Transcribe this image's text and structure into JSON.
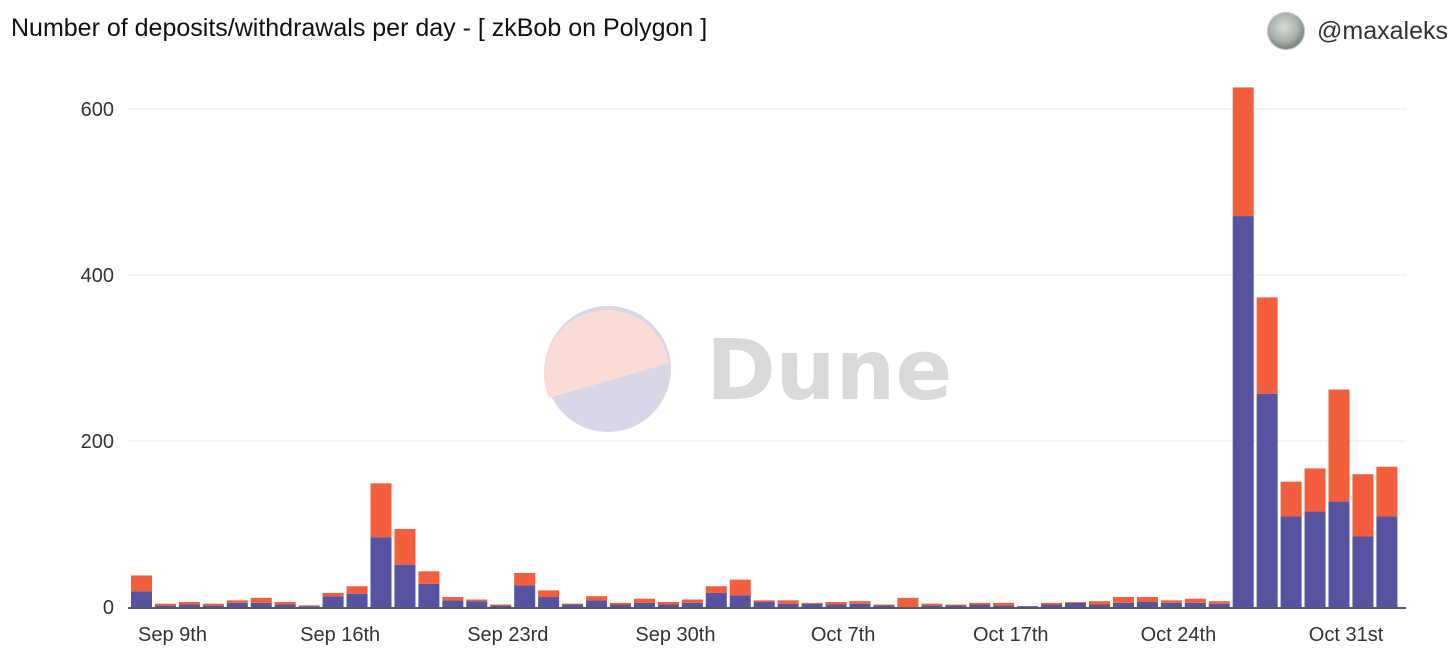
{
  "header": {
    "title": "Number of deposits/withdrawals per day - [ zkBob on Polygon ]",
    "author": "@maxaleks"
  },
  "watermark": {
    "text": "Dune"
  },
  "colors": {
    "deposits": "#5653a0",
    "withdrawals": "#f35e3d",
    "grid": "#e8e8e8",
    "axis": "#222222"
  },
  "chart_data": {
    "type": "bar",
    "stacked": true,
    "grid": true,
    "ylim": [
      0,
      630
    ],
    "yticks": [
      0,
      200,
      400,
      600
    ],
    "xticks": [
      {
        "index": 0,
        "label": "Sep 9th"
      },
      {
        "index": 7,
        "label": "Sep 16th"
      },
      {
        "index": 14,
        "label": "Sep 23rd"
      },
      {
        "index": 21,
        "label": "Sep 30th"
      },
      {
        "index": 28,
        "label": "Oct 7th"
      },
      {
        "index": 35,
        "label": "Oct 17th"
      },
      {
        "index": 42,
        "label": "Oct 24th"
      },
      {
        "index": 49,
        "label": "Oct 31st"
      }
    ],
    "series": [
      {
        "values": [
          19,
          2,
          3,
          2,
          5,
          5,
          3,
          1,
          13,
          16,
          84,
          51,
          28,
          8,
          7,
          2,
          26,
          12,
          3,
          8,
          3,
          5,
          3,
          5,
          17,
          14,
          6,
          4,
          4,
          3,
          4,
          2,
          0,
          2,
          2,
          3,
          2,
          1,
          3,
          5,
          3,
          5,
          6,
          5,
          5,
          4,
          471,
          257,
          109,
          115,
          127,
          85,
          109
        ]
      },
      {
        "values": [
          19,
          2,
          3,
          2,
          3,
          6,
          3,
          1,
          4,
          9,
          65,
          43,
          15,
          4,
          2,
          1,
          15,
          8,
          1,
          5,
          2,
          5,
          3,
          4,
          8,
          19,
          2,
          4,
          1,
          3,
          3,
          1,
          11,
          2,
          1,
          2,
          3,
          0,
          2,
          1,
          4,
          7,
          6,
          3,
          5,
          3,
          155,
          116,
          42,
          52,
          135,
          75,
          60
        ]
      }
    ]
  }
}
